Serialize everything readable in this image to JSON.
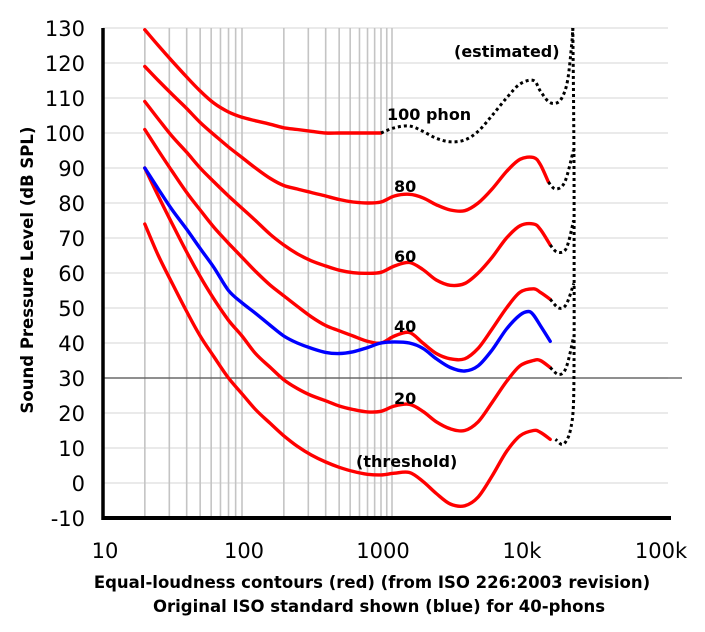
{
  "chart_data": {
    "type": "line",
    "title": "",
    "xlabel": "Equal-loudness contours (red) (from ISO 226:2003 revision)",
    "xlabel2": "Original ISO standard shown (blue) for 40-phons",
    "ylabel": "Sound Pressure Level (dB SPL)",
    "x_scale": "log",
    "xlim": [
      10,
      100000
    ],
    "ylim": [
      -10,
      130
    ],
    "x_ticks": [
      10,
      100,
      1000,
      10000,
      100000
    ],
    "x_tick_labels": [
      "10",
      "100",
      "1000",
      "10k",
      "100k"
    ],
    "y_ticks": [
      -10,
      0,
      10,
      20,
      30,
      40,
      50,
      60,
      70,
      80,
      90,
      100,
      110,
      120,
      130
    ],
    "y_tick_labels": [
      "-10",
      "0",
      "10",
      "20",
      "30",
      "40",
      "50",
      "60",
      "70",
      "80",
      "90",
      "100",
      "110",
      "120",
      "130"
    ],
    "grid": true,
    "x_gridlines": [
      20,
      30,
      40,
      50,
      60,
      70,
      80,
      90,
      100,
      200,
      300,
      400,
      500,
      600,
      700,
      800,
      900,
      1000,
      1100,
      1200
    ],
    "reference_line_y": 30,
    "colors": {
      "iso2003": "#ff0000",
      "original": "#0000ff",
      "estimated": "#000000"
    },
    "annotations": [
      "(estimated)",
      "100 phon",
      "80",
      "60",
      "40",
      "20",
      "(threshold)"
    ],
    "series": [
      {
        "phon": "100",
        "color": "#ff0000",
        "style": "solid",
        "x": [
          20,
          25,
          31.5,
          40,
          50,
          63,
          80,
          100,
          125,
          160,
          200,
          250,
          315,
          400,
          500,
          630,
          800,
          1000
        ],
        "y": [
          129.5,
          125,
          120.5,
          116,
          112,
          108.5,
          106,
          104.5,
          103.5,
          102.5,
          101.5,
          101,
          100.5,
          100,
          100,
          100,
          100,
          100
        ]
      },
      {
        "phon": "100",
        "color": "#000000",
        "style": "dotted",
        "x": [
          1000,
          1250,
          1600,
          2000,
          2500,
          3150,
          4000,
          5000,
          6300,
          8000,
          10000,
          12500,
          14000,
          16000,
          18000,
          20000,
          22000,
          23500,
          24000
        ],
        "y": [
          100,
          101.5,
          102,
          100.5,
          98.5,
          97.5,
          98,
          100.5,
          105,
          110,
          114,
          115,
          112,
          109,
          108.5,
          110,
          115,
          125,
          130
        ]
      },
      {
        "phon": "80",
        "color": "#ff0000",
        "style": "solid",
        "x": [
          20,
          25,
          31.5,
          40,
          50,
          63,
          80,
          100,
          125,
          160,
          200,
          250,
          315,
          400,
          500,
          630,
          800,
          1000,
          1250,
          1600,
          2000,
          2500,
          3150,
          4000,
          5000,
          6300,
          8000,
          10000,
          12500,
          14000,
          16000
        ],
        "y": [
          119,
          115,
          111,
          107,
          103,
          99.5,
          96,
          93,
          90,
          87,
          85,
          84,
          83,
          82,
          81,
          80.3,
          80,
          80.3,
          82,
          82.5,
          81.5,
          79.5,
          78,
          77.8,
          80,
          84,
          89,
          92.5,
          93,
          91,
          86
        ]
      },
      {
        "phon": "60",
        "color": "#ff0000",
        "style": "solid",
        "x": [
          20,
          25,
          31.5,
          40,
          50,
          63,
          80,
          100,
          125,
          160,
          200,
          250,
          315,
          400,
          500,
          630,
          800,
          1000,
          1250,
          1600,
          2000,
          2500,
          3150,
          4000,
          5000,
          6300,
          8000,
          10000,
          12500,
          14000,
          16500
        ],
        "y": [
          109,
          104,
          99,
          94.5,
          90,
          86,
          82,
          78.5,
          75,
          71,
          68,
          65.5,
          63.5,
          62,
          60.8,
          60.1,
          59.9,
          60.2,
          62,
          63,
          61,
          58,
          56.5,
          57,
          60,
          64.5,
          70,
          73.5,
          74,
          72.5,
          68
        ]
      },
      {
        "phon": "40",
        "color": "#ff0000",
        "style": "solid",
        "x": [
          20,
          25,
          31.5,
          40,
          50,
          63,
          80,
          100,
          125,
          160,
          200,
          250,
          315,
          400,
          500,
          630,
          800,
          1000,
          1250,
          1600,
          2000,
          2500,
          3150,
          4000,
          5000,
          6300,
          8000,
          10000,
          12500,
          14000,
          16500
        ],
        "y": [
          101,
          95,
          89,
          83,
          78,
          73,
          68.5,
          64.5,
          60.5,
          56.5,
          53.5,
          50.5,
          47.5,
          45,
          43.5,
          42,
          40.5,
          40,
          42,
          43,
          40,
          37,
          35.5,
          35.5,
          38.5,
          44,
          50,
          54.5,
          55.5,
          54.5,
          52.5
        ]
      },
      {
        "phon": "20",
        "color": "#ff0000",
        "style": "solid",
        "x": [
          20,
          25,
          31.5,
          40,
          50,
          63,
          80,
          100,
          125,
          160,
          200,
          250,
          315,
          400,
          500,
          630,
          800,
          1000,
          1250,
          1600,
          2000,
          2500,
          3150,
          4000,
          5000,
          6300,
          8000,
          10000,
          12500,
          14000,
          16500
        ],
        "y": [
          90,
          82,
          74,
          66,
          59,
          52.5,
          46.5,
          42,
          37,
          33,
          29.5,
          27,
          25,
          23.5,
          22,
          21,
          20.3,
          20.5,
          22,
          22.5,
          20.5,
          17.5,
          15.5,
          15,
          17.5,
          23,
          29,
          33.5,
          35,
          35,
          33
        ]
      },
      {
        "phon": "threshold",
        "color": "#ff0000",
        "style": "solid",
        "x": [
          20,
          25,
          31.5,
          40,
          50,
          63,
          80,
          100,
          125,
          160,
          200,
          250,
          315,
          400,
          500,
          630,
          800,
          1000,
          1250,
          1600,
          2000,
          2500,
          3150,
          4000,
          5000,
          6300,
          8000,
          10000,
          12500,
          14000,
          16500
        ],
        "y": [
          74,
          65,
          57,
          49,
          42,
          36,
          30,
          25.5,
          21,
          17,
          13.5,
          10.5,
          8,
          6,
          4.5,
          3.3,
          2.5,
          2.3,
          2.8,
          3,
          0.5,
          -3,
          -6,
          -6.5,
          -4,
          2,
          9,
          13.5,
          15,
          14.5,
          12.5
        ]
      },
      {
        "phon": "40 (original ISO)",
        "color": "#0000ff",
        "style": "solid",
        "x": [
          20,
          25,
          31.5,
          40,
          50,
          63,
          80,
          100,
          125,
          160,
          200,
          250,
          315,
          400,
          500,
          630,
          800,
          1000,
          1250,
          1600,
          2000,
          2500,
          3150,
          4000,
          5000,
          6300,
          8000,
          10000,
          11500,
          12500,
          14000,
          16500
        ],
        "y": [
          90,
          84,
          78,
          72.5,
          67,
          61.5,
          55,
          51.5,
          48.5,
          45,
          42,
          40,
          38.5,
          37.3,
          37,
          37.5,
          38.7,
          40,
          40.3,
          40,
          38.5,
          35.5,
          33,
          32,
          33.5,
          38,
          44,
          48,
          49,
          48,
          45,
          40.5
        ]
      },
      {
        "phon": "estimated",
        "color": "#000000",
        "style": "dotted",
        "x": [
          24000,
          24400,
          24500,
          24500,
          24200,
          23000,
          21500,
          20000,
          18000
        ],
        "y": [
          130,
          100,
          70,
          40,
          22,
          15,
          12,
          11,
          12.5
        ]
      },
      {
        "phon": "80 (estimated)",
        "color": "#000000",
        "style": "dotted",
        "x": [
          16000,
          18000,
          21000,
          24200
        ],
        "y": [
          86,
          84,
          86,
          95
        ]
      },
      {
        "phon": "60 (estimated)",
        "color": "#000000",
        "style": "dotted",
        "x": [
          16500,
          18500,
          21500,
          24300
        ],
        "y": [
          68,
          66,
          67,
          75
        ]
      },
      {
        "phon": "40 (estimated)",
        "color": "#000000",
        "style": "dotted",
        "x": [
          16500,
          19000,
          21500,
          24400
        ],
        "y": [
          52.5,
          50,
          51,
          57
        ]
      },
      {
        "phon": "20 (estimated)",
        "color": "#000000",
        "style": "dotted",
        "x": [
          16500,
          19000,
          21500,
          24400
        ],
        "y": [
          33,
          31,
          33,
          42
        ]
      }
    ]
  }
}
